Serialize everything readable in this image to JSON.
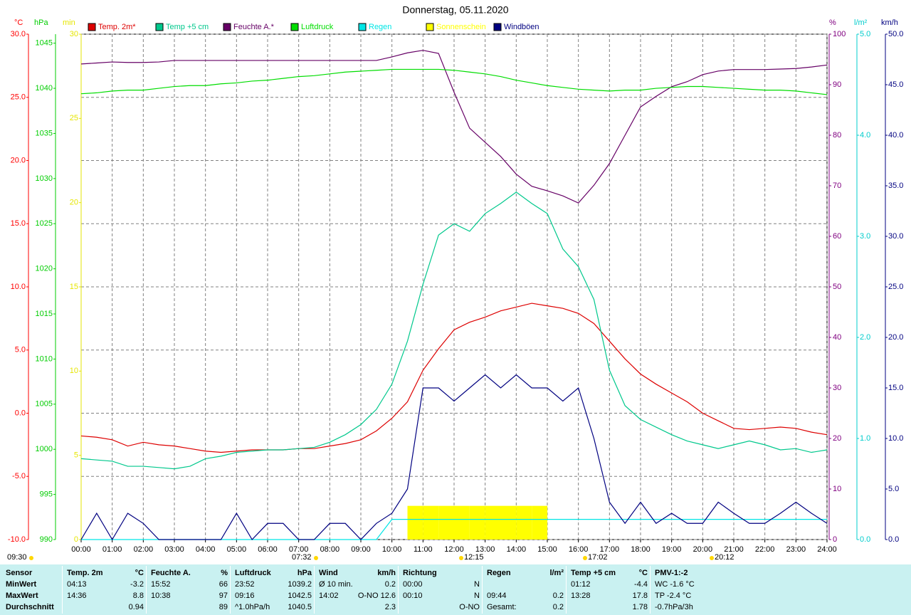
{
  "chart_data": {
    "type": "line",
    "title": "Donnerstag, 05.11.2020",
    "x": [
      0,
      0.5,
      1,
      1.5,
      2,
      2.5,
      3,
      3.5,
      4,
      4.5,
      5,
      5.5,
      6,
      6.5,
      7,
      7.5,
      8,
      8.5,
      9,
      9.5,
      10,
      10.5,
      11,
      11.5,
      12,
      12.5,
      13,
      13.5,
      14,
      14.5,
      15,
      15.5,
      16,
      16.5,
      17,
      17.5,
      18,
      18.5,
      19,
      19.5,
      20,
      20.5,
      21,
      21.5,
      22,
      22.5,
      23,
      23.5,
      24
    ],
    "xlim": [
      0,
      24
    ],
    "xticks": [
      {
        "value": 0,
        "label": "00:00"
      },
      {
        "value": 1,
        "label": "01:00"
      },
      {
        "value": 2,
        "label": "02:00"
      },
      {
        "value": 3,
        "label": "03:00"
      },
      {
        "value": 4,
        "label": "04:00"
      },
      {
        "value": 5,
        "label": "05:00"
      },
      {
        "value": 6,
        "label": "06:00"
      },
      {
        "value": 7,
        "label": "07:00"
      },
      {
        "value": 8,
        "label": "08:00"
      },
      {
        "value": 9,
        "label": "09:00"
      },
      {
        "value": 10,
        "label": "10:00"
      },
      {
        "value": 11,
        "label": "11:00"
      },
      {
        "value": 12,
        "label": "12:00"
      },
      {
        "value": 13,
        "label": "13:00"
      },
      {
        "value": 14,
        "label": "14:00"
      },
      {
        "value": 15,
        "label": "15:00"
      },
      {
        "value": 16,
        "label": "16:00"
      },
      {
        "value": 17,
        "label": "17:00"
      },
      {
        "value": 18,
        "label": "18:00"
      },
      {
        "value": 19,
        "label": "19:00"
      },
      {
        "value": 20,
        "label": "20:00"
      },
      {
        "value": 21,
        "label": "21:00"
      },
      {
        "value": 22,
        "label": "22:00"
      },
      {
        "value": 23,
        "label": "23:00"
      },
      {
        "value": 24,
        "label": "24:00"
      }
    ],
    "grid": true,
    "axes": [
      {
        "unit": "°C",
        "color": "#ff0000",
        "ylim": [
          -10,
          30
        ],
        "yticks": [
          {
            "value": -10,
            "label": "-10.0"
          },
          {
            "value": -5,
            "label": "-5.0"
          },
          {
            "value": 0,
            "label": "0.0"
          },
          {
            "value": 5,
            "label": "5.0"
          },
          {
            "value": 10,
            "label": "10.0"
          },
          {
            "value": 15,
            "label": "15.0"
          },
          {
            "value": 20,
            "label": "20.0"
          },
          {
            "value": 25,
            "label": "25.0"
          },
          {
            "value": 30,
            "label": "30.0"
          }
        ]
      },
      {
        "unit": "hPa",
        "color": "#00cc00",
        "ylim": [
          990,
          1046
        ],
        "yticks": [
          990,
          995,
          1000,
          1005,
          1010,
          1015,
          1020,
          1025,
          1030,
          1035,
          1040,
          1045
        ]
      },
      {
        "unit": "min",
        "color": "#e6e600",
        "ylim": [
          0,
          30
        ],
        "yticks": [
          0,
          5,
          10,
          15,
          20,
          25,
          30
        ]
      },
      {
        "unit": "%",
        "color": "#800080",
        "ylim": [
          0,
          100
        ],
        "yticks": [
          0,
          10,
          20,
          30,
          40,
          50,
          60,
          70,
          80,
          90,
          100
        ]
      },
      {
        "unit": "l/m²",
        "color": "#00cccc",
        "ylim": [
          0,
          5
        ],
        "yticks": [
          {
            "value": 0,
            "label": "0.0"
          },
          {
            "value": 1,
            "label": "1.0"
          },
          {
            "value": 2,
            "label": "2.0"
          },
          {
            "value": 3,
            "label": "3.0"
          },
          {
            "value": 4,
            "label": "4.0"
          },
          {
            "value": 5,
            "label": "5.0"
          }
        ]
      },
      {
        "unit": "km/h",
        "color": "#000080",
        "ylim": [
          0,
          50
        ],
        "yticks": [
          {
            "value": 0,
            "label": "0.0"
          },
          {
            "value": 5,
            "label": "5.0"
          },
          {
            "value": 10,
            "label": "10.0"
          },
          {
            "value": 15,
            "label": "15.0"
          },
          {
            "value": 20,
            "label": "20.0"
          },
          {
            "value": 25,
            "label": "25.0"
          },
          {
            "value": 30,
            "label": "30.0"
          },
          {
            "value": 35,
            "label": "35.0"
          },
          {
            "value": 40,
            "label": "40.0"
          },
          {
            "value": 45,
            "label": "45.0"
          },
          {
            "value": 50,
            "label": "50.0"
          }
        ]
      }
    ],
    "series": [
      {
        "name": "Temp. 2m*",
        "color": "#dd0000",
        "axis": 0,
        "style": "line",
        "values": [
          -1.8,
          -1.9,
          -2.1,
          -2.6,
          -2.3,
          -2.5,
          -2.6,
          -2.8,
          -3.0,
          -3.1,
          -3.0,
          -2.9,
          -2.9,
          -2.9,
          -2.8,
          -2.8,
          -2.6,
          -2.4,
          -2.1,
          -1.4,
          -0.4,
          0.9,
          3.4,
          5.1,
          6.6,
          7.2,
          7.6,
          8.1,
          8.4,
          8.7,
          8.5,
          8.3,
          7.9,
          7.1,
          5.7,
          4.3,
          3.1,
          2.3,
          1.6,
          0.9,
          0.0,
          -0.6,
          -1.2,
          -1.3,
          -1.2,
          -1.1,
          -1.2,
          -1.5,
          -1.7
        ]
      },
      {
        "name": "Temp +5 cm",
        "color": "#00c88c",
        "axis": 0,
        "style": "line",
        "values": [
          -3.6,
          -3.7,
          -3.8,
          -4.2,
          -4.2,
          -4.3,
          -4.4,
          -4.2,
          -3.6,
          -3.4,
          -3.1,
          -3.0,
          -2.9,
          -2.9,
          -2.8,
          -2.7,
          -2.3,
          -1.7,
          -0.9,
          0.3,
          2.3,
          5.7,
          10.2,
          14.1,
          15.0,
          14.4,
          15.8,
          16.6,
          17.5,
          16.6,
          15.8,
          13.0,
          11.6,
          9.0,
          3.4,
          0.6,
          -0.5,
          -1.1,
          -1.7,
          -2.2,
          -2.5,
          -2.8,
          -2.5,
          -2.2,
          -2.5,
          -2.9,
          -2.8,
          -3.1,
          -2.9
        ]
      },
      {
        "name": "Feuchte A.*",
        "color": "#660066",
        "axis": 3,
        "style": "line",
        "values": [
          94.1,
          94.3,
          94.5,
          94.4,
          94.4,
          94.5,
          94.8,
          94.8,
          94.8,
          94.8,
          94.8,
          94.8,
          94.8,
          94.8,
          94.8,
          94.8,
          94.8,
          94.8,
          94.8,
          94.8,
          95.5,
          96.3,
          96.8,
          96.2,
          88.5,
          81.4,
          78.6,
          75.8,
          72.3,
          69.9,
          69.0,
          68.0,
          66.6,
          70.1,
          74.4,
          80.0,
          85.6,
          87.7,
          89.6,
          90.6,
          92.0,
          92.7,
          93.0,
          93.0,
          93.0,
          93.1,
          93.2,
          93.5,
          93.9
        ]
      },
      {
        "name": "Luftdruck",
        "color": "#00dd00",
        "axis": 1,
        "style": "line",
        "values": [
          1039.4,
          1039.5,
          1039.7,
          1039.8,
          1039.8,
          1040.0,
          1040.2,
          1040.3,
          1040.3,
          1040.5,
          1040.6,
          1040.8,
          1040.9,
          1041.1,
          1041.3,
          1041.4,
          1041.6,
          1041.8,
          1041.9,
          1042.0,
          1042.1,
          1042.1,
          1042.1,
          1042.1,
          1042.0,
          1041.8,
          1041.6,
          1041.3,
          1040.9,
          1040.6,
          1040.3,
          1040.1,
          1039.9,
          1039.8,
          1039.7,
          1039.8,
          1039.8,
          1040.0,
          1040.1,
          1040.2,
          1040.2,
          1040.1,
          1040.0,
          1039.9,
          1039.8,
          1039.8,
          1039.7,
          1039.5,
          1039.3
        ]
      },
      {
        "name": "Regen",
        "color": "#00e6e6",
        "axis": 4,
        "style": "line",
        "values": [
          0,
          0,
          0,
          0,
          0,
          0,
          0,
          0,
          0,
          0,
          0,
          0,
          0,
          0,
          0,
          0,
          0,
          0,
          0,
          0,
          0.2,
          0.2,
          0.2,
          0.2,
          0.2,
          0.2,
          0.2,
          0.2,
          0.2,
          0.2,
          0.2,
          0.2,
          0.2,
          0.2,
          0.2,
          0.2,
          0.2,
          0.2,
          0.2,
          0.2,
          0.2,
          0.2,
          0.2,
          0.2,
          0.2,
          0.2,
          0.2,
          0.2,
          0.2
        ]
      },
      {
        "name": "Sonnenschein",
        "color": "#ffff00",
        "axis": 2,
        "style": "bar",
        "values": [
          0,
          0,
          0,
          0,
          0,
          0,
          0,
          0,
          0,
          0,
          0,
          0,
          0,
          0,
          0,
          0,
          0,
          0,
          0,
          0,
          0,
          2,
          2,
          2,
          2,
          2,
          2,
          2,
          2,
          2,
          0,
          0,
          0,
          0,
          0,
          0,
          0,
          0,
          0,
          0,
          0,
          0,
          0,
          0,
          0,
          0,
          0,
          0,
          0
        ]
      },
      {
        "name": "Windböen",
        "color": "#000080",
        "axis": 5,
        "style": "line",
        "values": [
          0,
          2.6,
          0,
          2.6,
          1.6,
          0,
          0,
          0,
          0,
          0,
          2.6,
          0,
          1.6,
          1.6,
          0,
          0,
          1.6,
          1.6,
          0,
          1.6,
          2.6,
          5.0,
          15.0,
          15.0,
          13.7,
          15.0,
          16.3,
          15.0,
          16.3,
          15.0,
          15.0,
          13.7,
          15.0,
          10.0,
          3.7,
          1.6,
          3.7,
          1.6,
          2.6,
          1.6,
          1.6,
          3.7,
          2.6,
          1.6,
          1.6,
          2.6,
          3.7,
          2.6,
          1.6
        ]
      }
    ],
    "annotations": [
      "09:30",
      "07:32",
      "12:15",
      "17:02",
      "20:12"
    ]
  },
  "table": {
    "header": "Sensor",
    "columns": [
      {
        "title": "Temp. 2m",
        "unit": "°C"
      },
      {
        "title": "Feuchte A.",
        "unit": "%"
      },
      {
        "title": "Luftdruck",
        "unit": "hPa"
      },
      {
        "title": "Wind",
        "unit": "km/h"
      },
      {
        "title": "Richtung",
        "unit": null
      },
      {
        "title": "Regen",
        "unit": "l/m²"
      },
      {
        "title": "Temp +5 cm",
        "unit": "°C"
      },
      {
        "title": "PMV-1:-2",
        "unit": null
      }
    ],
    "rows": [
      {
        "label": "MinWert",
        "cells": [
          [
            "04:13",
            "-3.2"
          ],
          [
            "15:52",
            "66"
          ],
          [
            "23:52",
            "1039.2"
          ],
          [
            "Ø 10 min.",
            "0.2"
          ],
          [
            "00:00",
            "N"
          ],
          [
            null,
            null
          ],
          [
            "01:12",
            "-4.4"
          ],
          [
            "WC -1.6 °C",
            null
          ]
        ]
      },
      {
        "label": "MaxWert",
        "cells": [
          [
            "14:36",
            "8.8"
          ],
          [
            "10:38",
            "97"
          ],
          [
            "09:16",
            "1042.5"
          ],
          [
            "14:02",
            "O-NO 12.6"
          ],
          [
            "00:10",
            "N"
          ],
          [
            "09:44",
            "0.2"
          ],
          [
            "13:28",
            "17.8"
          ],
          [
            "TP -2.4 °C",
            null
          ]
        ]
      },
      {
        "label": "Durchschnitt",
        "cells": [
          [
            null,
            "0.94"
          ],
          [
            null,
            "89"
          ],
          [
            "^1.0hPa/h",
            "1040.5"
          ],
          [
            null,
            "2.3"
          ],
          [
            null,
            "O-NO"
          ],
          [
            "Gesamt:",
            "0.2"
          ],
          [
            null,
            "1.78"
          ],
          [
            "-0.7hPa/3h",
            null
          ]
        ]
      }
    ]
  }
}
